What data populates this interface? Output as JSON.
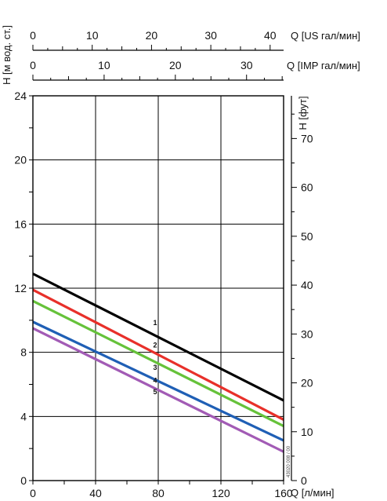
{
  "chart_data": {
    "type": "line",
    "x_axis": {
      "label": "Q [л/мин]",
      "range": [
        0,
        160
      ],
      "ticks": [
        0,
        40,
        80,
        120,
        160
      ]
    },
    "x_top_axis_us": {
      "label": "Q [US гал/мин]",
      "range": [
        0,
        42.27
      ],
      "ticks": [
        0,
        10,
        20,
        30,
        40
      ]
    },
    "x_top_axis_imp": {
      "label": "Q [IMP гал/мин]",
      "range": [
        0,
        35.2
      ],
      "ticks": [
        0,
        10,
        20,
        30
      ]
    },
    "y_axis_left": {
      "label": "H [м вод. ст.]",
      "range": [
        0,
        24
      ],
      "ticks": [
        0,
        4,
        8,
        12,
        16,
        20,
        24
      ]
    },
    "y_axis_right": {
      "label": "H [фут]",
      "range": [
        0,
        78.74
      ],
      "ticks": [
        0,
        10,
        20,
        30,
        40,
        50,
        60,
        70
      ]
    },
    "grid": true,
    "series": [
      {
        "name": "1",
        "color": "#000000",
        "x": [
          0,
          160
        ],
        "y": [
          12.9,
          5.0
        ]
      },
      {
        "name": "2",
        "color": "#e8302a",
        "x": [
          0,
          160
        ],
        "y": [
          11.9,
          3.8
        ]
      },
      {
        "name": "3",
        "color": "#66c23a",
        "x": [
          0,
          160
        ],
        "y": [
          11.2,
          3.4
        ]
      },
      {
        "name": "4",
        "color": "#1f5fb5",
        "x": [
          0,
          160
        ],
        "y": [
          9.9,
          2.5
        ]
      },
      {
        "name": "5",
        "color": "#a25bb5",
        "x": [
          0,
          160
        ],
        "y": [
          9.5,
          1.8
        ]
      }
    ],
    "curve_labels": [
      {
        "text": "1",
        "x": 78,
        "y": 9.7
      },
      {
        "text": "2",
        "x": 78,
        "y": 8.3
      },
      {
        "text": "3",
        "x": 78,
        "y": 6.9
      },
      {
        "text": "4",
        "x": 78,
        "y": 6.1
      },
      {
        "text": "5",
        "x": 78,
        "y": 5.4
      }
    ],
    "doc_id": "43020 008 / 00"
  }
}
